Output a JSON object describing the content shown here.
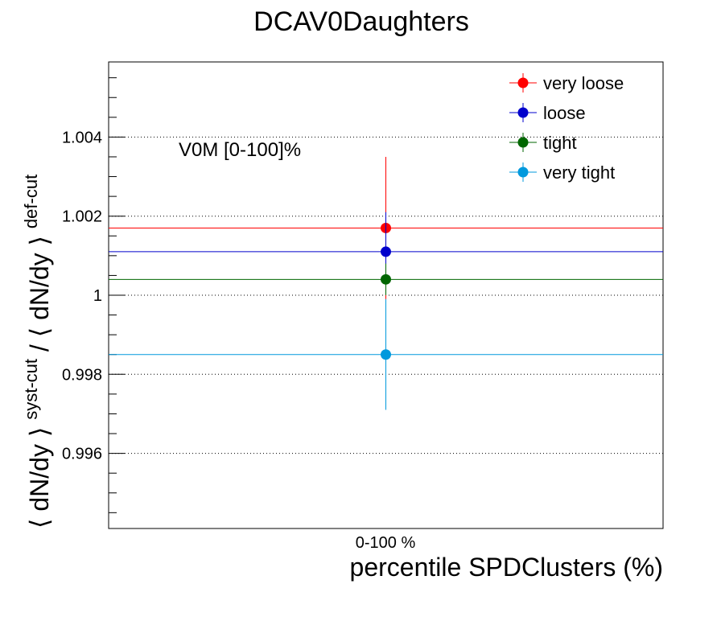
{
  "chart_data": {
    "type": "scatter",
    "title": "DCAV0Daughters",
    "xlabel": "percentile SPDClusters (%)",
    "ylabel": {
      "part1": "⟨ dN/dy ⟩",
      "sup1": "syst-cut",
      "sep": " / ",
      "part2": "⟨ dN/dy ⟩",
      "sup2": "def-cut"
    },
    "annotation": "V0M [0-100]%",
    "categories": [
      "0-100 %"
    ],
    "ylim": [
      0.9941,
      1.0059
    ],
    "yticks": [
      {
        "value": 0.996,
        "label": "0.996"
      },
      {
        "value": 0.998,
        "label": "0.998"
      },
      {
        "value": 1.0,
        "label": "1"
      },
      {
        "value": 1.002,
        "label": "1.002"
      },
      {
        "value": 1.004,
        "label": "1.004"
      }
    ],
    "grid": true,
    "legend_position": "top-right",
    "series": [
      {
        "name": "very loose",
        "color": "#ff0000",
        "values": [
          1.0017
        ],
        "err": [
          0.0018
        ]
      },
      {
        "name": "loose",
        "color": "#0000cc",
        "values": [
          1.0011
        ],
        "err": [
          0.001
        ]
      },
      {
        "name": "tight",
        "color": "#006600",
        "values": [
          1.0004
        ],
        "err": [
          0.0004
        ]
      },
      {
        "name": "very tight",
        "color": "#0099dd",
        "values": [
          0.9985
        ],
        "err": [
          0.0014
        ]
      }
    ]
  }
}
